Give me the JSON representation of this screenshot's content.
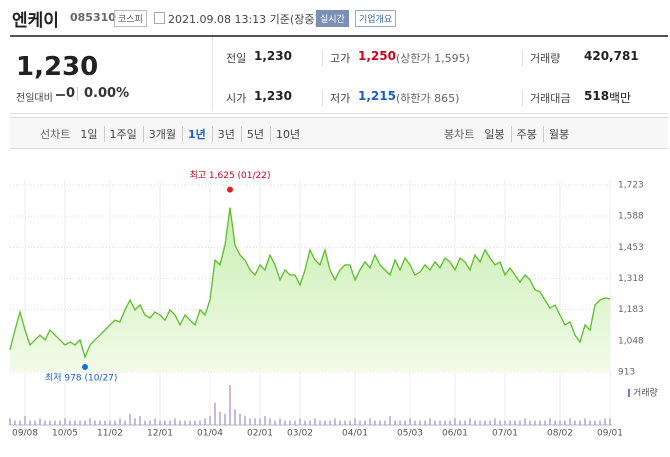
{
  "header": {
    "name": "엔케이",
    "code": "085310",
    "market": "코스피",
    "timestamp": "2021.09.08 13:13 기준(장중)",
    "realtime": "실시간",
    "company_info": "기업개요"
  },
  "summary": {
    "price": "1,230",
    "change_label": "전일대비",
    "change": "0",
    "change_pct": "0.00%",
    "prev_close_label": "전일",
    "prev_close": "1,230",
    "high_label": "고가",
    "high": "1,250",
    "upper_limit": "(상한가 1,595)",
    "volume_label": "거래량",
    "volume": "420,781",
    "open_label": "시가",
    "open": "1,230",
    "low_label": "저가",
    "low": "1,215",
    "lower_limit": "(하한가 865)",
    "amount_label": "거래대금",
    "amount": "518",
    "amount_unit": "백만"
  },
  "tabs": {
    "line_label": "선차트",
    "line_periods": [
      "1일",
      "1주일",
      "3개월",
      "1년",
      "3년",
      "5년",
      "10년"
    ],
    "selected": "1년",
    "candle_label": "봉차트",
    "candle_periods": [
      "일봉",
      "주봉",
      "월봉"
    ]
  },
  "chart_data": {
    "type": "line",
    "color": "#5cbf2a",
    "high_annotation": "최고 1,625 (01/22)",
    "low_annotation": "최저 978 (10/27)",
    "volume_label": "거래량",
    "ylim": [
      913,
      1723
    ],
    "yticks": [
      {
        "value": 1723,
        "label": "1,723"
      },
      {
        "value": 1588,
        "label": "1,588"
      },
      {
        "value": 1453,
        "label": "1,453"
      },
      {
        "value": 1318,
        "label": "1,318"
      },
      {
        "value": 1183,
        "label": "1,183"
      },
      {
        "value": 1048,
        "label": "1,048"
      },
      913
    ],
    "categories": [
      null,
      null,
      null,
      "09/08",
      null,
      null,
      null,
      null,
      null,
      null,
      null,
      "10/05",
      null,
      null,
      null,
      null,
      null,
      null,
      null,
      null,
      "11/02",
      null,
      null,
      null,
      null,
      null,
      null,
      null,
      null,
      null,
      "12/01",
      null,
      null,
      null,
      null,
      null,
      null,
      null,
      null,
      null,
      "01/04",
      null,
      null,
      null,
      null,
      null,
      null,
      null,
      null,
      null,
      "02/01",
      null,
      null,
      null,
      null,
      null,
      null,
      null,
      "03/02",
      null,
      null,
      null,
      null,
      null,
      null,
      null,
      null,
      null,
      null,
      "04/01",
      null,
      null,
      null,
      null,
      null,
      null,
      null,
      null,
      null,
      null,
      "05/03",
      null,
      null,
      null,
      null,
      null,
      null,
      null,
      null,
      "06/01",
      null,
      null,
      null,
      null,
      null,
      null,
      null,
      null,
      null,
      "07/01",
      null,
      null,
      null,
      null,
      null,
      null,
      null,
      null,
      null,
      null,
      "08/02",
      null,
      null,
      null,
      null,
      null,
      null,
      null,
      null,
      null,
      "09/01"
    ],
    "values": [
      1009,
      1095,
      1173,
      1095,
      1030,
      1052,
      1073,
      1052,
      1095,
      1073,
      1052,
      1030,
      1043,
      1030,
      1052,
      978,
      1030,
      1052,
      1073,
      1095,
      1117,
      1138,
      1130,
      1182,
      1225,
      1182,
      1203,
      1160,
      1147,
      1173,
      1160,
      1138,
      1182,
      1160,
      1117,
      1160,
      1138,
      1117,
      1182,
      1160,
      1225,
      1398,
      1377,
      1463,
      1625,
      1463,
      1420,
      1398,
      1355,
      1333,
      1377,
      1355,
      1420,
      1377,
      1312,
      1355,
      1333,
      1333,
      1290,
      1355,
      1442,
      1398,
      1377,
      1442,
      1355,
      1312,
      1355,
      1377,
      1377,
      1312,
      1355,
      1390,
      1364,
      1420,
      1377,
      1355,
      1333,
      1398,
      1355,
      1407,
      1377,
      1333,
      1346,
      1377,
      1355,
      1390,
      1364,
      1407,
      1390,
      1355,
      1407,
      1390,
      1355,
      1420,
      1390,
      1442,
      1407,
      1377,
      1390,
      1333,
      1364,
      1333,
      1303,
      1333,
      1312,
      1268,
      1260,
      1225,
      1190,
      1203,
      1160,
      1117,
      1130,
      1073,
      1043,
      1117,
      1095,
      1203,
      1225,
      1234,
      1230
    ],
    "volume": [
      3,
      2,
      2,
      4,
      2,
      2,
      3,
      2,
      2,
      2,
      2,
      3,
      2,
      2,
      2,
      2,
      3,
      2,
      2,
      2,
      2,
      2,
      3,
      2,
      5,
      3,
      4,
      2,
      2,
      3,
      2,
      2,
      2,
      3,
      2,
      2,
      2,
      2,
      2,
      3,
      4,
      10,
      6,
      5,
      18,
      7,
      5,
      4,
      3,
      3,
      3,
      4,
      3,
      2,
      3,
      2,
      2,
      2,
      3,
      2,
      2,
      3,
      2,
      2,
      2,
      3,
      2,
      2,
      2,
      3,
      2,
      2,
      3,
      2,
      2,
      2,
      4,
      2,
      2,
      2,
      3,
      2,
      2,
      2,
      3,
      2,
      2,
      2,
      2,
      3,
      2,
      2,
      3,
      2,
      2,
      2,
      2,
      3,
      2,
      2,
      2,
      2,
      2,
      3,
      2,
      2,
      2,
      2,
      3,
      2,
      2,
      2,
      3,
      2,
      2,
      3,
      2,
      2,
      2,
      3,
      3
    ]
  }
}
